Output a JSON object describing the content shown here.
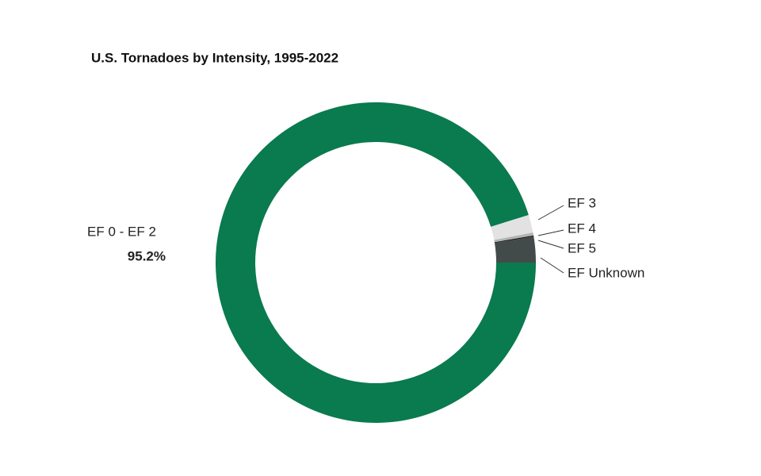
{
  "chart_data": {
    "type": "donut",
    "title": "U.S. Tornadoes by Intensity,  1995-2022",
    "categories": [
      "EF 0 - EF 2",
      "EF 3",
      "EF 4",
      "EF 5",
      "EF Unknown"
    ],
    "values": [
      95.2,
      1.8,
      0.3,
      0.1,
      2.6
    ],
    "value_labels": [
      "95.2%",
      null,
      null,
      null,
      null
    ],
    "colors": [
      "#0a7a4f",
      "#e2e2e2",
      "#b3b3b3",
      "#111111",
      "#434b4a"
    ]
  }
}
